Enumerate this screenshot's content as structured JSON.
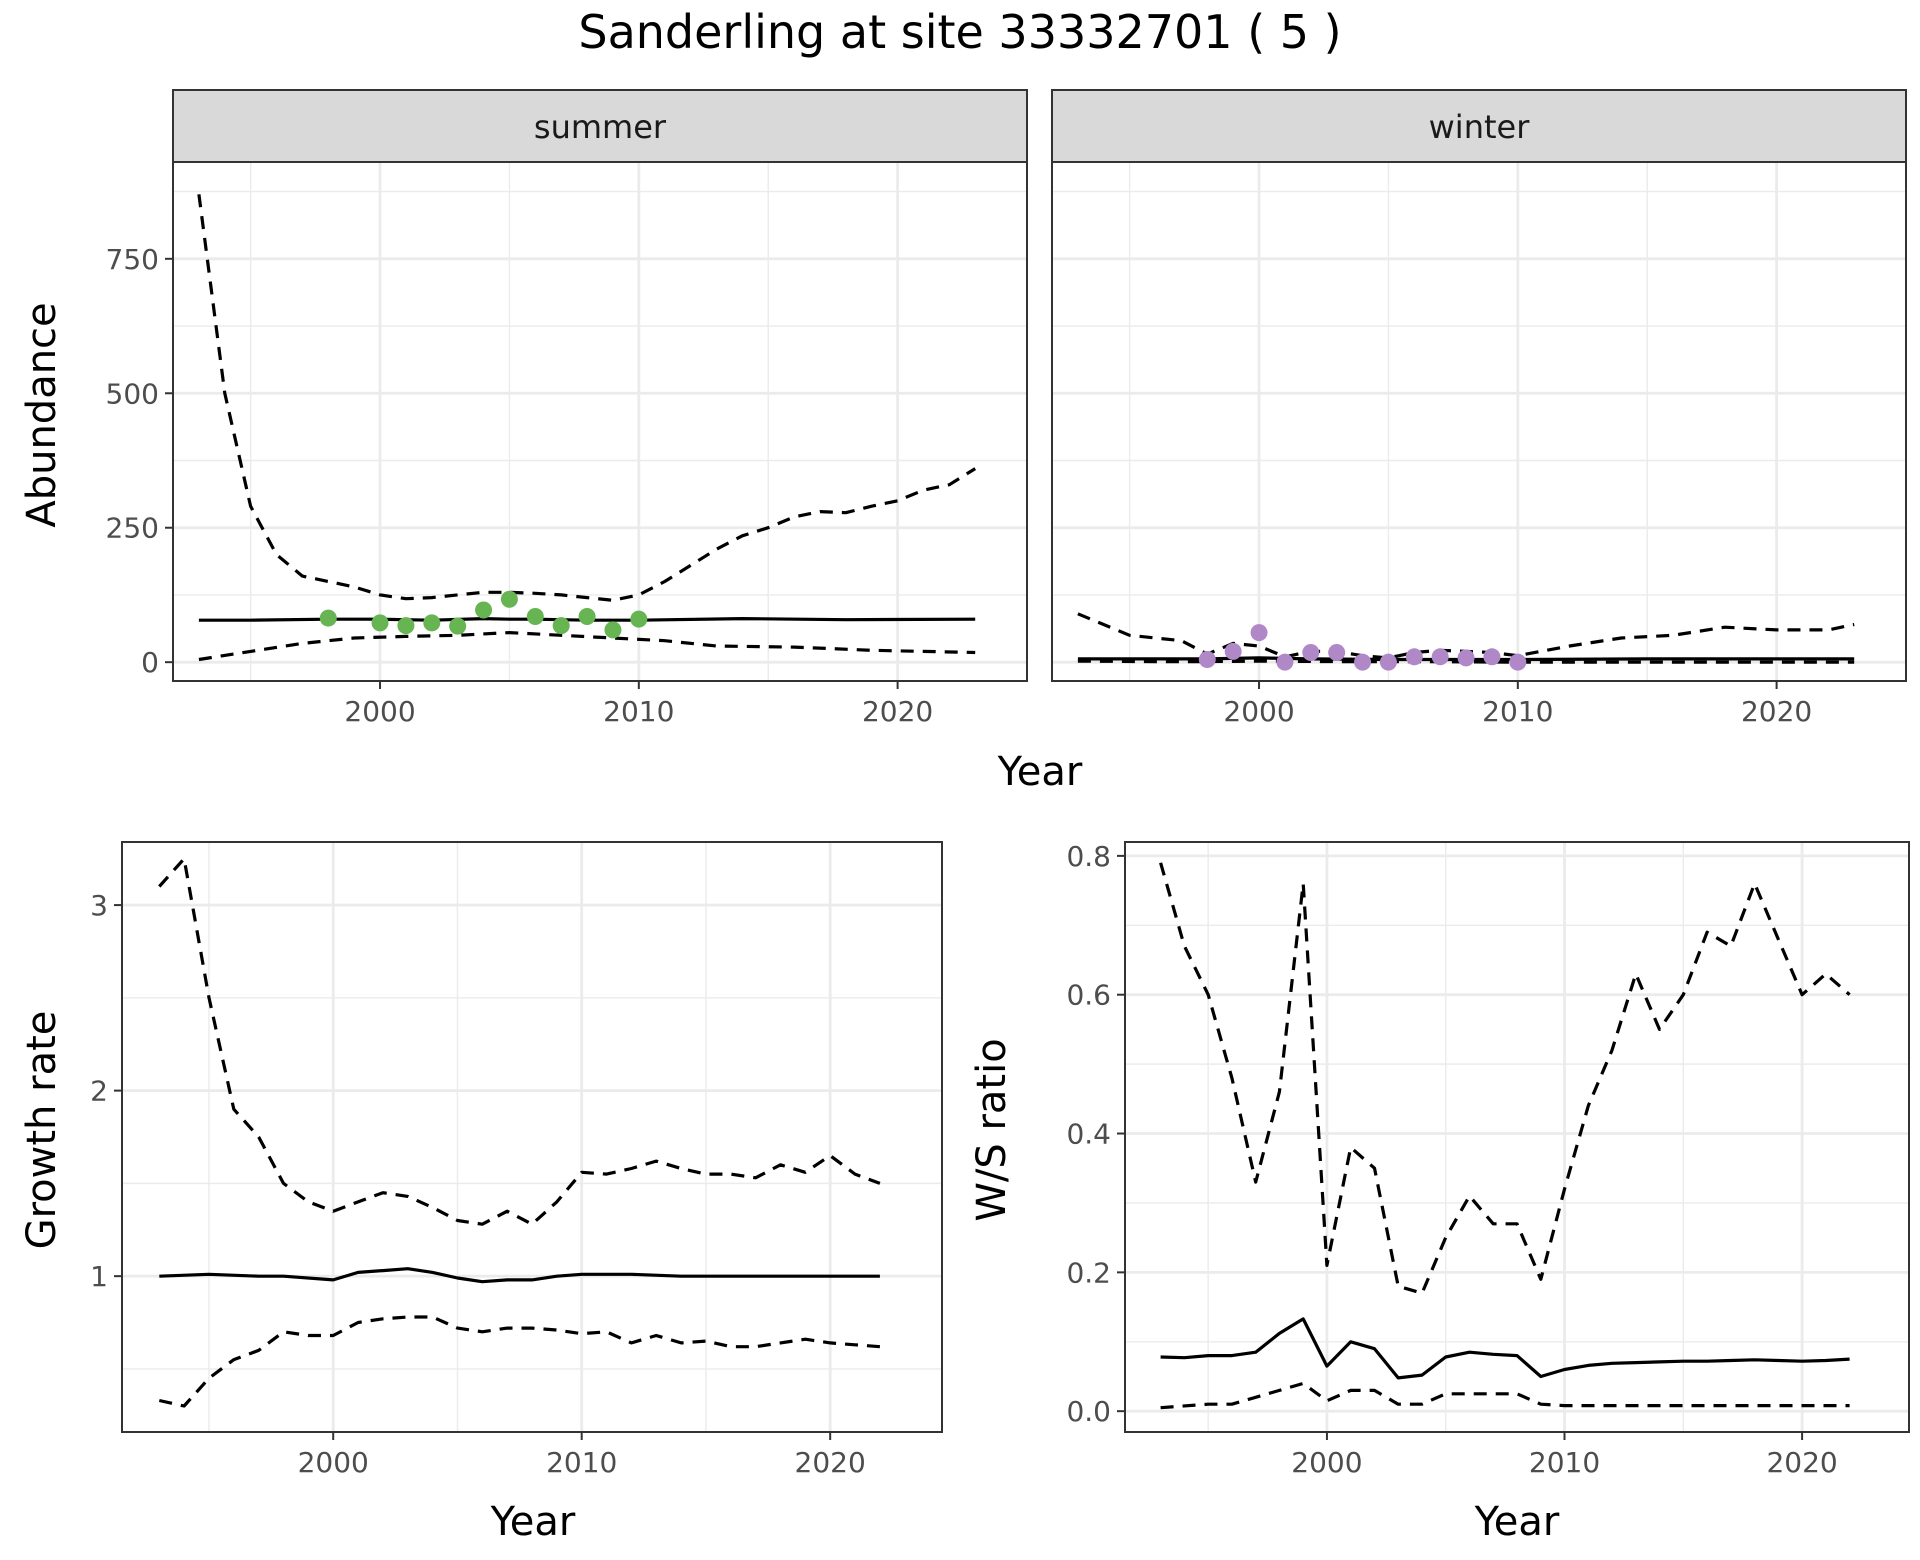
{
  "title": "Sanderling at site 33332701 ( 5 )",
  "colors": {
    "summer_points": "#66b452",
    "winter_points": "#b088c8",
    "line": "#000000",
    "grid": "#ebebeb",
    "strip": "#d9d9d9"
  },
  "chart_data": [
    {
      "type": "line",
      "facet": "summer",
      "xlabel": "Year",
      "ylabel": "Abundance",
      "xlim": [
        1992,
        2025
      ],
      "ylim": [
        -35,
        930
      ],
      "xticks": [
        2000,
        2010,
        2020
      ],
      "yticks": [
        0,
        250,
        500,
        750
      ],
      "grid": true,
      "fit": {
        "x": [
          1993,
          1995,
          1998,
          2000,
          2002,
          2004,
          2005,
          2006,
          2008,
          2010,
          2014,
          2018,
          2023
        ],
        "y": [
          78,
          78,
          80,
          80,
          78,
          81,
          80,
          80,
          78,
          78,
          81,
          79,
          80
        ]
      },
      "lower": {
        "x": [
          1993,
          1995,
          1997,
          1999,
          2001,
          2003,
          2005,
          2007,
          2009,
          2011,
          2013,
          2016,
          2019,
          2023
        ],
        "y": [
          5,
          20,
          35,
          45,
          48,
          50,
          55,
          50,
          45,
          40,
          30,
          28,
          22,
          18
        ]
      },
      "upper": {
        "x": [
          1993,
          1994,
          1995,
          1996,
          1997,
          1998,
          1999,
          2000,
          2001,
          2002,
          2003,
          2004,
          2005,
          2006,
          2007,
          2008,
          2009,
          2010,
          2011,
          2012,
          2013,
          2014,
          2015,
          2016,
          2017,
          2018,
          2019,
          2020,
          2021,
          2022,
          2023
        ],
        "y": [
          870,
          500,
          290,
          200,
          160,
          150,
          140,
          125,
          118,
          120,
          125,
          130,
          130,
          128,
          125,
          120,
          115,
          125,
          150,
          180,
          210,
          235,
          250,
          270,
          280,
          278,
          290,
          300,
          320,
          330,
          360
        ]
      },
      "points": {
        "x": [
          1998,
          2000,
          2001,
          2002,
          2003,
          2004,
          2005,
          2006,
          2007,
          2008,
          2009,
          2010
        ],
        "y": [
          82,
          73,
          68,
          73,
          67,
          97,
          117,
          85,
          68,
          85,
          60,
          80
        ]
      }
    },
    {
      "type": "line",
      "facet": "winter",
      "xlabel": "Year",
      "ylabel": "Abundance",
      "xlim": [
        1992,
        2025
      ],
      "ylim": [
        -35,
        930
      ],
      "xticks": [
        2000,
        2010,
        2020
      ],
      "yticks": [
        0,
        250,
        500,
        750
      ],
      "grid": true,
      "fit": {
        "x": [
          1993,
          1998,
          2000,
          2002,
          2005,
          2010,
          2015,
          2020,
          2023
        ],
        "y": [
          6,
          6,
          8,
          6,
          5,
          5,
          6,
          6,
          6
        ]
      },
      "lower": {
        "x": [
          1993,
          1996,
          1998,
          2000,
          2003,
          2006,
          2010,
          2015,
          2020,
          2023
        ],
        "y": [
          2,
          1,
          1,
          2,
          1,
          1,
          0,
          0,
          0,
          0
        ]
      },
      "upper": {
        "x": [
          1993,
          1995,
          1997,
          1998,
          1999,
          2000,
          2001,
          2002,
          2003,
          2004,
          2005,
          2006,
          2007,
          2008,
          2009,
          2010,
          2012,
          2014,
          2016,
          2018,
          2020,
          2022,
          2023
        ],
        "y": [
          90,
          50,
          40,
          15,
          35,
          30,
          10,
          20,
          20,
          12,
          8,
          18,
          22,
          20,
          18,
          12,
          30,
          45,
          50,
          65,
          60,
          60,
          70
        ]
      },
      "points": {
        "x": [
          1998,
          1999,
          2000,
          2001,
          2002,
          2003,
          2004,
          2005,
          2006,
          2007,
          2008,
          2009,
          2010
        ],
        "y": [
          5,
          20,
          55,
          0,
          18,
          18,
          0,
          0,
          10,
          10,
          8,
          10,
          0
        ]
      }
    },
    {
      "type": "line",
      "xlabel": "Year",
      "ylabel": "Growth rate",
      "xlim": [
        1991.5,
        2024.5
      ],
      "ylim": [
        0.16,
        3.34
      ],
      "xticks": [
        2000,
        2010,
        2020
      ],
      "yticks": [
        1,
        2,
        3
      ],
      "grid": true,
      "fit": {
        "x": [
          1993,
          1995,
          1997,
          1998,
          2000,
          2001,
          2002,
          2003,
          2004,
          2005,
          2006,
          2007,
          2008,
          2009,
          2010,
          2012,
          2014,
          2016,
          2017,
          2018,
          2019,
          2020,
          2021,
          2022
        ],
        "y": [
          1.0,
          1.01,
          1.0,
          1.0,
          0.98,
          1.02,
          1.03,
          1.04,
          1.02,
          0.99,
          0.97,
          0.98,
          0.98,
          1.0,
          1.01,
          1.01,
          1.0,
          1.0,
          1.0,
          1.0,
          1.0,
          1.0,
          1.0,
          1.0
        ]
      },
      "lower": {
        "x": [
          1993,
          1994,
          1995,
          1996,
          1997,
          1998,
          1999,
          2000,
          2001,
          2002,
          2003,
          2004,
          2005,
          2006,
          2007,
          2008,
          2009,
          2010,
          2011,
          2012,
          2013,
          2014,
          2015,
          2016,
          2017,
          2018,
          2019,
          2020,
          2021,
          2022
        ],
        "y": [
          0.33,
          0.3,
          0.45,
          0.55,
          0.6,
          0.7,
          0.68,
          0.68,
          0.75,
          0.77,
          0.78,
          0.78,
          0.72,
          0.7,
          0.72,
          0.72,
          0.71,
          0.69,
          0.7,
          0.64,
          0.68,
          0.64,
          0.65,
          0.62,
          0.62,
          0.64,
          0.66,
          0.64,
          0.63,
          0.62
        ]
      },
      "upper": {
        "x": [
          1993,
          1994,
          1995,
          1996,
          1997,
          1998,
          1999,
          2000,
          2001,
          2002,
          2003,
          2004,
          2005,
          2006,
          2007,
          2008,
          2009,
          2010,
          2011,
          2012,
          2013,
          2014,
          2015,
          2016,
          2017,
          2018,
          2019,
          2020,
          2021,
          2022
        ],
        "y": [
          3.1,
          3.25,
          2.5,
          1.9,
          1.75,
          1.5,
          1.4,
          1.35,
          1.4,
          1.45,
          1.43,
          1.37,
          1.3,
          1.28,
          1.35,
          1.28,
          1.4,
          1.56,
          1.55,
          1.58,
          1.62,
          1.58,
          1.55,
          1.55,
          1.53,
          1.6,
          1.56,
          1.65,
          1.55,
          1.5
        ]
      }
    },
    {
      "type": "line",
      "xlabel": "Year",
      "ylabel": "W/S ratio",
      "xlim": [
        1991.5,
        2024.5
      ],
      "ylim": [
        -0.03,
        0.82
      ],
      "xticks": [
        2000,
        2010,
        2020
      ],
      "yticks": [
        0.0,
        0.2,
        0.4,
        0.6,
        0.8
      ],
      "grid": true,
      "fit": {
        "x": [
          1993,
          1994,
          1995,
          1996,
          1997,
          1998,
          1999,
          2000,
          2001,
          2002,
          2003,
          2004,
          2005,
          2006,
          2007,
          2008,
          2009,
          2010,
          2011,
          2012,
          2013,
          2014,
          2015,
          2016,
          2017,
          2018,
          2019,
          2020,
          2021,
          2022
        ],
        "y": [
          0.078,
          0.077,
          0.08,
          0.08,
          0.085,
          0.112,
          0.133,
          0.065,
          0.1,
          0.09,
          0.048,
          0.052,
          0.078,
          0.085,
          0.082,
          0.08,
          0.05,
          0.06,
          0.066,
          0.069,
          0.07,
          0.071,
          0.072,
          0.072,
          0.073,
          0.074,
          0.073,
          0.072,
          0.073,
          0.075
        ]
      },
      "lower": {
        "x": [
          1993,
          1995,
          1996,
          1997,
          1998,
          1999,
          2000,
          2001,
          2002,
          2003,
          2004,
          2005,
          2006,
          2007,
          2008,
          2009,
          2010,
          2012,
          2014,
          2016,
          2018,
          2020,
          2022
        ],
        "y": [
          0.005,
          0.01,
          0.01,
          0.02,
          0.03,
          0.04,
          0.015,
          0.03,
          0.03,
          0.01,
          0.01,
          0.025,
          0.025,
          0.025,
          0.025,
          0.01,
          0.008,
          0.008,
          0.008,
          0.008,
          0.008,
          0.008,
          0.008
        ]
      },
      "upper": {
        "x": [
          1993,
          1994,
          1995,
          1996,
          1997,
          1998,
          1999,
          2000,
          2001,
          2002,
          2003,
          2004,
          2005,
          2006,
          2007,
          2008,
          2009,
          2010,
          2011,
          2012,
          2013,
          2014,
          2015,
          2016,
          2017,
          2018,
          2019,
          2020,
          2021,
          2022
        ],
        "y": [
          0.79,
          0.67,
          0.6,
          0.48,
          0.33,
          0.46,
          0.76,
          0.21,
          0.38,
          0.35,
          0.18,
          0.17,
          0.25,
          0.31,
          0.27,
          0.27,
          0.19,
          0.32,
          0.44,
          0.52,
          0.63,
          0.55,
          0.6,
          0.69,
          0.67,
          0.76,
          0.68,
          0.6,
          0.63,
          0.6
        ]
      }
    }
  ]
}
